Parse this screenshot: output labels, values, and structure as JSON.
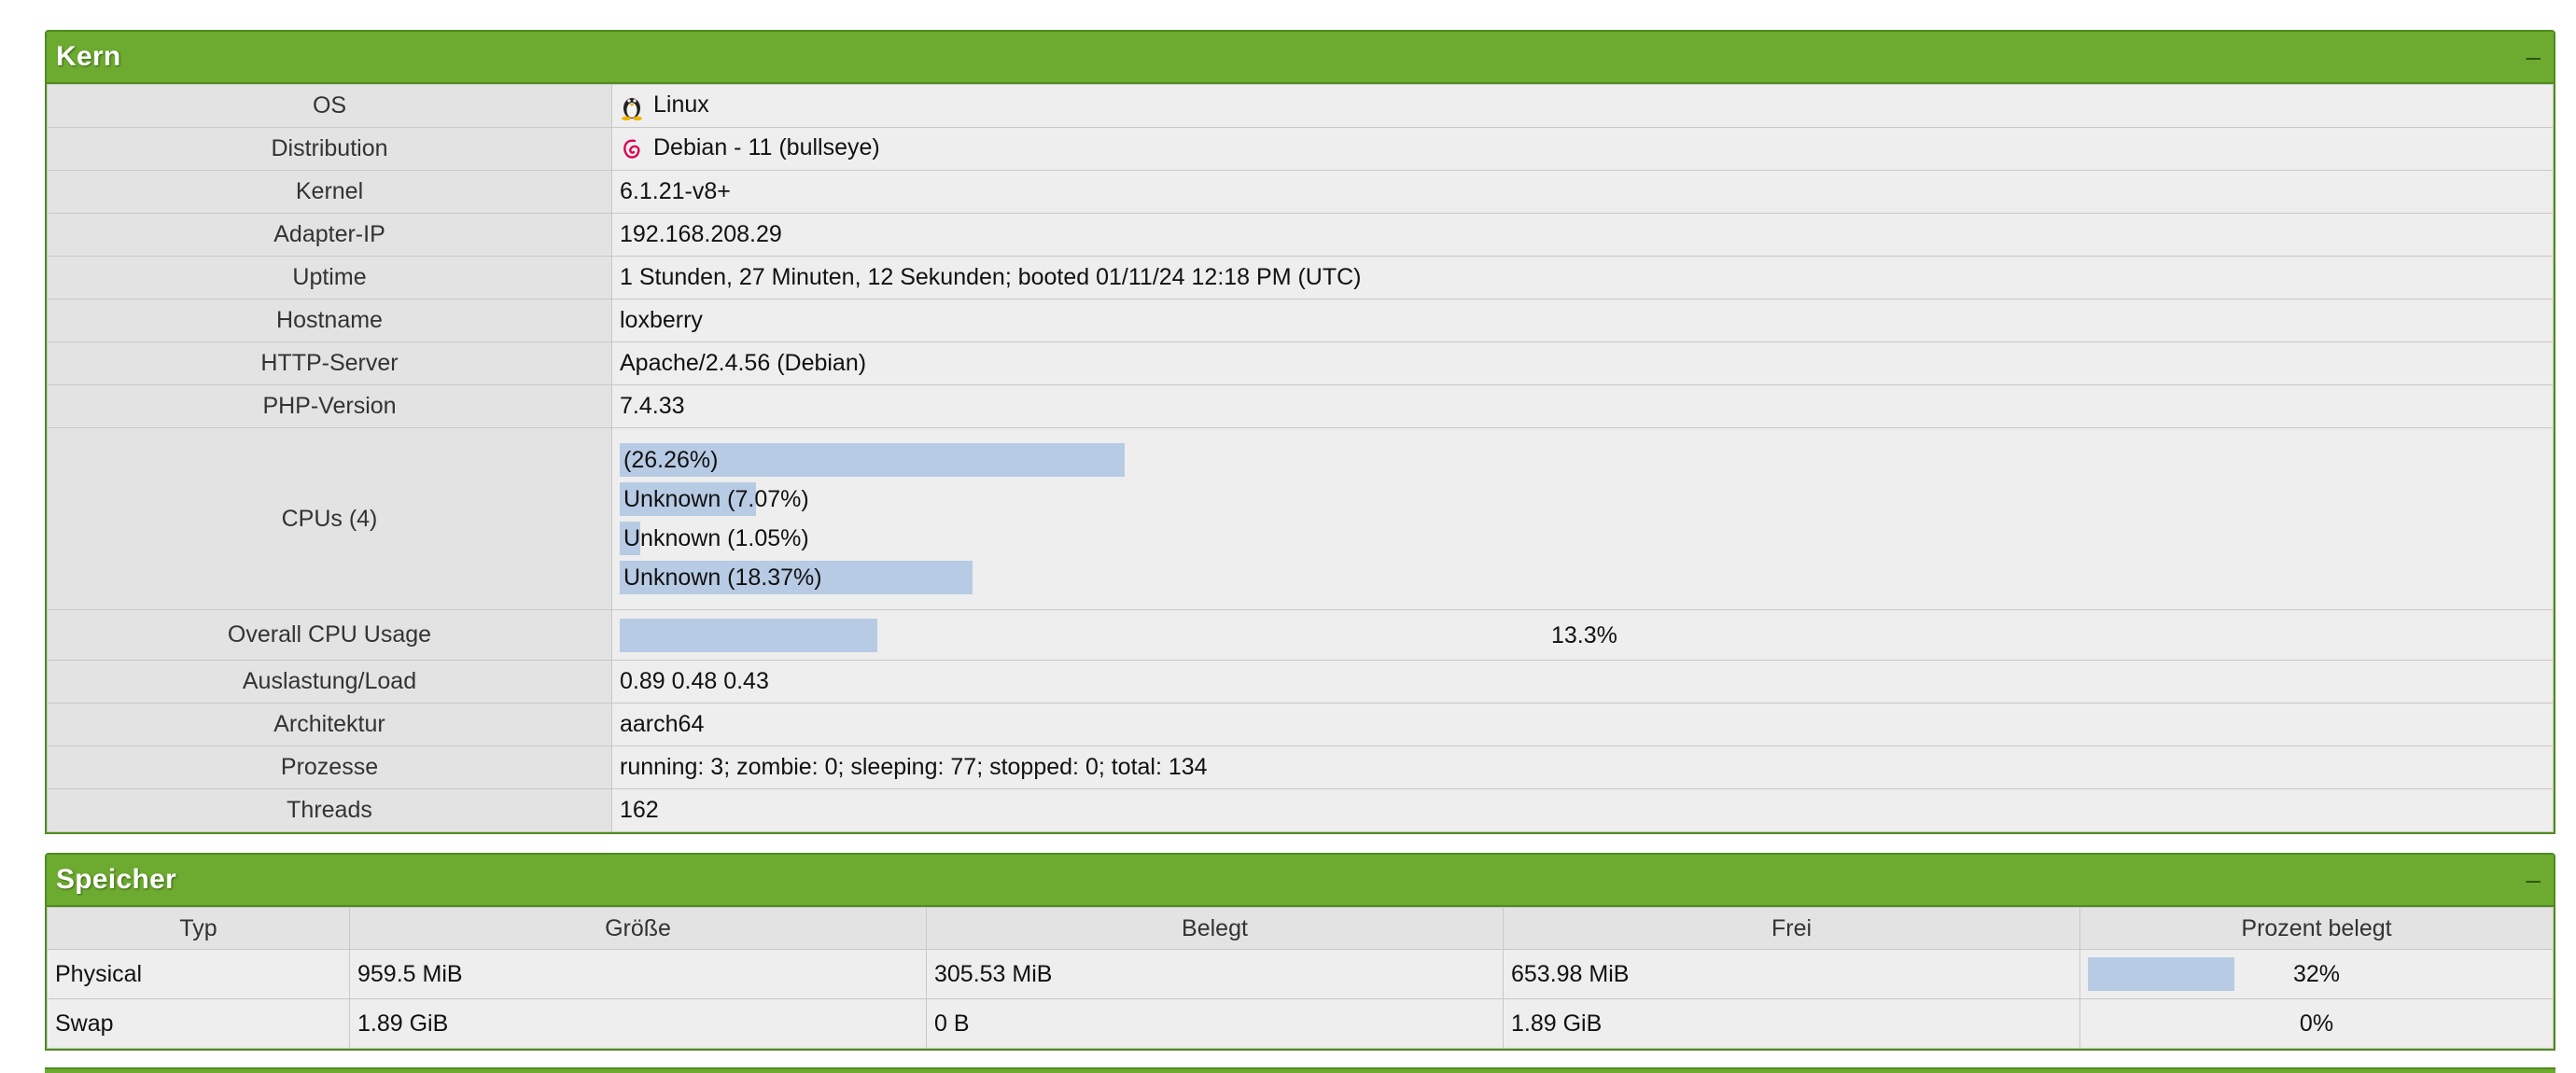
{
  "kern": {
    "title": "Kern",
    "collapse": "–",
    "rows": {
      "os": {
        "label": "OS",
        "value": "Linux"
      },
      "distribution": {
        "label": "Distribution",
        "value": "Debian - 11 (bullseye)"
      },
      "kernel": {
        "label": "Kernel",
        "value": "6.1.21-v8+"
      },
      "adapter_ip": {
        "label": "Adapter-IP",
        "value": "192.168.208.29"
      },
      "uptime": {
        "label": "Uptime",
        "value": "1 Stunden, 27 Minuten, 12 Sekunden; booted 01/11/24 12:18 PM (UTC)"
      },
      "hostname": {
        "label": "Hostname",
        "value": "loxberry"
      },
      "http_server": {
        "label": "HTTP-Server",
        "value": "Apache/2.4.56 (Debian)"
      },
      "php_version": {
        "label": "PHP-Version",
        "value": "7.4.33"
      },
      "cpus": {
        "label": "CPUs (4)"
      },
      "overall": {
        "label": "Overall CPU Usage",
        "value": "13.3%",
        "percent": 13.3
      },
      "load": {
        "label": "Auslastung/Load",
        "value": "0.89 0.48 0.43"
      },
      "arch": {
        "label": "Architektur",
        "value": "aarch64"
      },
      "processes": {
        "label": "Prozesse",
        "value": "running: 3; zombie: 0; sleeping: 77; stopped: 0; total: 134"
      },
      "threads": {
        "label": "Threads",
        "value": "162"
      }
    },
    "cpu_list": [
      {
        "text": "(26.26%)",
        "percent": 26.26
      },
      {
        "text": "Unknown (7.07%)",
        "percent": 7.07
      },
      {
        "text": "Unknown (1.05%)",
        "percent": 1.05
      },
      {
        "text": "Unknown (18.37%)",
        "percent": 18.37
      }
    ]
  },
  "speicher": {
    "title": "Speicher",
    "collapse": "–",
    "headers": [
      "Typ",
      "Größe",
      "Belegt",
      "Frei",
      "Prozent belegt"
    ],
    "rows": [
      {
        "typ": "Physical",
        "groesse": "959.5 MiB",
        "belegt": "305.53 MiB",
        "frei": "653.98 MiB",
        "prozent": "32%",
        "percent": 32
      },
      {
        "typ": "Swap",
        "groesse": "1.89 GiB",
        "belegt": "0 B",
        "frei": "1.89 GiB",
        "prozent": "0%",
        "percent": 0
      }
    ]
  }
}
